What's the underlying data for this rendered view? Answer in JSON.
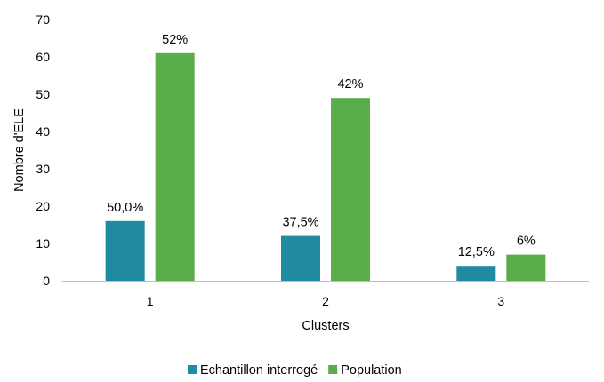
{
  "chart_data": {
    "type": "bar",
    "xlabel": "Clusters",
    "ylabel": "Nombre d'ELE",
    "categories": [
      "1",
      "2",
      "3"
    ],
    "ylim": [
      0,
      70
    ],
    "yticks": [
      "0",
      "10",
      "20",
      "30",
      "40",
      "50",
      "60",
      "70"
    ],
    "grid": false,
    "legend_position": "bottom",
    "series": [
      {
        "name": "Echantillon interrogé",
        "color": "#1f8aa0",
        "values": [
          16,
          12,
          4
        ],
        "labels": [
          "50,0%",
          "37,5%",
          "12,5%"
        ]
      },
      {
        "name": "Population",
        "color": "#5aad4a",
        "values": [
          61,
          49,
          7
        ],
        "labels": [
          "52%",
          "42%",
          "6%"
        ]
      }
    ]
  }
}
